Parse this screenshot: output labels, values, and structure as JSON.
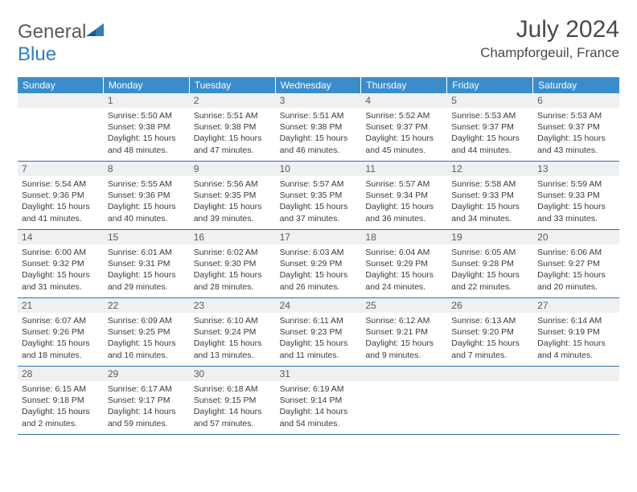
{
  "logo": {
    "general": "General",
    "blue": "Blue"
  },
  "title": "July 2024",
  "location": "Champforgeuil, France",
  "colors": {
    "header_bg": "#3a8dcc",
    "header_text": "#ffffff",
    "daynum_bg": "#eef0f2",
    "border": "#2f6fa8",
    "logo_blue": "#2f7fbf",
    "logo_gray": "#5a5a5a"
  },
  "day_headers": [
    "Sunday",
    "Monday",
    "Tuesday",
    "Wednesday",
    "Thursday",
    "Friday",
    "Saturday"
  ],
  "weeks": [
    [
      {
        "n": "",
        "lines": [
          "",
          "",
          "",
          ""
        ]
      },
      {
        "n": "1",
        "lines": [
          "Sunrise: 5:50 AM",
          "Sunset: 9:38 PM",
          "Daylight: 15 hours",
          "and 48 minutes."
        ]
      },
      {
        "n": "2",
        "lines": [
          "Sunrise: 5:51 AM",
          "Sunset: 9:38 PM",
          "Daylight: 15 hours",
          "and 47 minutes."
        ]
      },
      {
        "n": "3",
        "lines": [
          "Sunrise: 5:51 AM",
          "Sunset: 9:38 PM",
          "Daylight: 15 hours",
          "and 46 minutes."
        ]
      },
      {
        "n": "4",
        "lines": [
          "Sunrise: 5:52 AM",
          "Sunset: 9:37 PM",
          "Daylight: 15 hours",
          "and 45 minutes."
        ]
      },
      {
        "n": "5",
        "lines": [
          "Sunrise: 5:53 AM",
          "Sunset: 9:37 PM",
          "Daylight: 15 hours",
          "and 44 minutes."
        ]
      },
      {
        "n": "6",
        "lines": [
          "Sunrise: 5:53 AM",
          "Sunset: 9:37 PM",
          "Daylight: 15 hours",
          "and 43 minutes."
        ]
      }
    ],
    [
      {
        "n": "7",
        "lines": [
          "Sunrise: 5:54 AM",
          "Sunset: 9:36 PM",
          "Daylight: 15 hours",
          "and 41 minutes."
        ]
      },
      {
        "n": "8",
        "lines": [
          "Sunrise: 5:55 AM",
          "Sunset: 9:36 PM",
          "Daylight: 15 hours",
          "and 40 minutes."
        ]
      },
      {
        "n": "9",
        "lines": [
          "Sunrise: 5:56 AM",
          "Sunset: 9:35 PM",
          "Daylight: 15 hours",
          "and 39 minutes."
        ]
      },
      {
        "n": "10",
        "lines": [
          "Sunrise: 5:57 AM",
          "Sunset: 9:35 PM",
          "Daylight: 15 hours",
          "and 37 minutes."
        ]
      },
      {
        "n": "11",
        "lines": [
          "Sunrise: 5:57 AM",
          "Sunset: 9:34 PM",
          "Daylight: 15 hours",
          "and 36 minutes."
        ]
      },
      {
        "n": "12",
        "lines": [
          "Sunrise: 5:58 AM",
          "Sunset: 9:33 PM",
          "Daylight: 15 hours",
          "and 34 minutes."
        ]
      },
      {
        "n": "13",
        "lines": [
          "Sunrise: 5:59 AM",
          "Sunset: 9:33 PM",
          "Daylight: 15 hours",
          "and 33 minutes."
        ]
      }
    ],
    [
      {
        "n": "14",
        "lines": [
          "Sunrise: 6:00 AM",
          "Sunset: 9:32 PM",
          "Daylight: 15 hours",
          "and 31 minutes."
        ]
      },
      {
        "n": "15",
        "lines": [
          "Sunrise: 6:01 AM",
          "Sunset: 9:31 PM",
          "Daylight: 15 hours",
          "and 29 minutes."
        ]
      },
      {
        "n": "16",
        "lines": [
          "Sunrise: 6:02 AM",
          "Sunset: 9:30 PM",
          "Daylight: 15 hours",
          "and 28 minutes."
        ]
      },
      {
        "n": "17",
        "lines": [
          "Sunrise: 6:03 AM",
          "Sunset: 9:29 PM",
          "Daylight: 15 hours",
          "and 26 minutes."
        ]
      },
      {
        "n": "18",
        "lines": [
          "Sunrise: 6:04 AM",
          "Sunset: 9:29 PM",
          "Daylight: 15 hours",
          "and 24 minutes."
        ]
      },
      {
        "n": "19",
        "lines": [
          "Sunrise: 6:05 AM",
          "Sunset: 9:28 PM",
          "Daylight: 15 hours",
          "and 22 minutes."
        ]
      },
      {
        "n": "20",
        "lines": [
          "Sunrise: 6:06 AM",
          "Sunset: 9:27 PM",
          "Daylight: 15 hours",
          "and 20 minutes."
        ]
      }
    ],
    [
      {
        "n": "21",
        "lines": [
          "Sunrise: 6:07 AM",
          "Sunset: 9:26 PM",
          "Daylight: 15 hours",
          "and 18 minutes."
        ]
      },
      {
        "n": "22",
        "lines": [
          "Sunrise: 6:09 AM",
          "Sunset: 9:25 PM",
          "Daylight: 15 hours",
          "and 16 minutes."
        ]
      },
      {
        "n": "23",
        "lines": [
          "Sunrise: 6:10 AM",
          "Sunset: 9:24 PM",
          "Daylight: 15 hours",
          "and 13 minutes."
        ]
      },
      {
        "n": "24",
        "lines": [
          "Sunrise: 6:11 AM",
          "Sunset: 9:23 PM",
          "Daylight: 15 hours",
          "and 11 minutes."
        ]
      },
      {
        "n": "25",
        "lines": [
          "Sunrise: 6:12 AM",
          "Sunset: 9:21 PM",
          "Daylight: 15 hours",
          "and 9 minutes."
        ]
      },
      {
        "n": "26",
        "lines": [
          "Sunrise: 6:13 AM",
          "Sunset: 9:20 PM",
          "Daylight: 15 hours",
          "and 7 minutes."
        ]
      },
      {
        "n": "27",
        "lines": [
          "Sunrise: 6:14 AM",
          "Sunset: 9:19 PM",
          "Daylight: 15 hours",
          "and 4 minutes."
        ]
      }
    ],
    [
      {
        "n": "28",
        "lines": [
          "Sunrise: 6:15 AM",
          "Sunset: 9:18 PM",
          "Daylight: 15 hours",
          "and 2 minutes."
        ]
      },
      {
        "n": "29",
        "lines": [
          "Sunrise: 6:17 AM",
          "Sunset: 9:17 PM",
          "Daylight: 14 hours",
          "and 59 minutes."
        ]
      },
      {
        "n": "30",
        "lines": [
          "Sunrise: 6:18 AM",
          "Sunset: 9:15 PM",
          "Daylight: 14 hours",
          "and 57 minutes."
        ]
      },
      {
        "n": "31",
        "lines": [
          "Sunrise: 6:19 AM",
          "Sunset: 9:14 PM",
          "Daylight: 14 hours",
          "and 54 minutes."
        ]
      },
      {
        "n": "",
        "lines": [
          "",
          "",
          "",
          ""
        ]
      },
      {
        "n": "",
        "lines": [
          "",
          "",
          "",
          ""
        ]
      },
      {
        "n": "",
        "lines": [
          "",
          "",
          "",
          ""
        ]
      }
    ]
  ]
}
